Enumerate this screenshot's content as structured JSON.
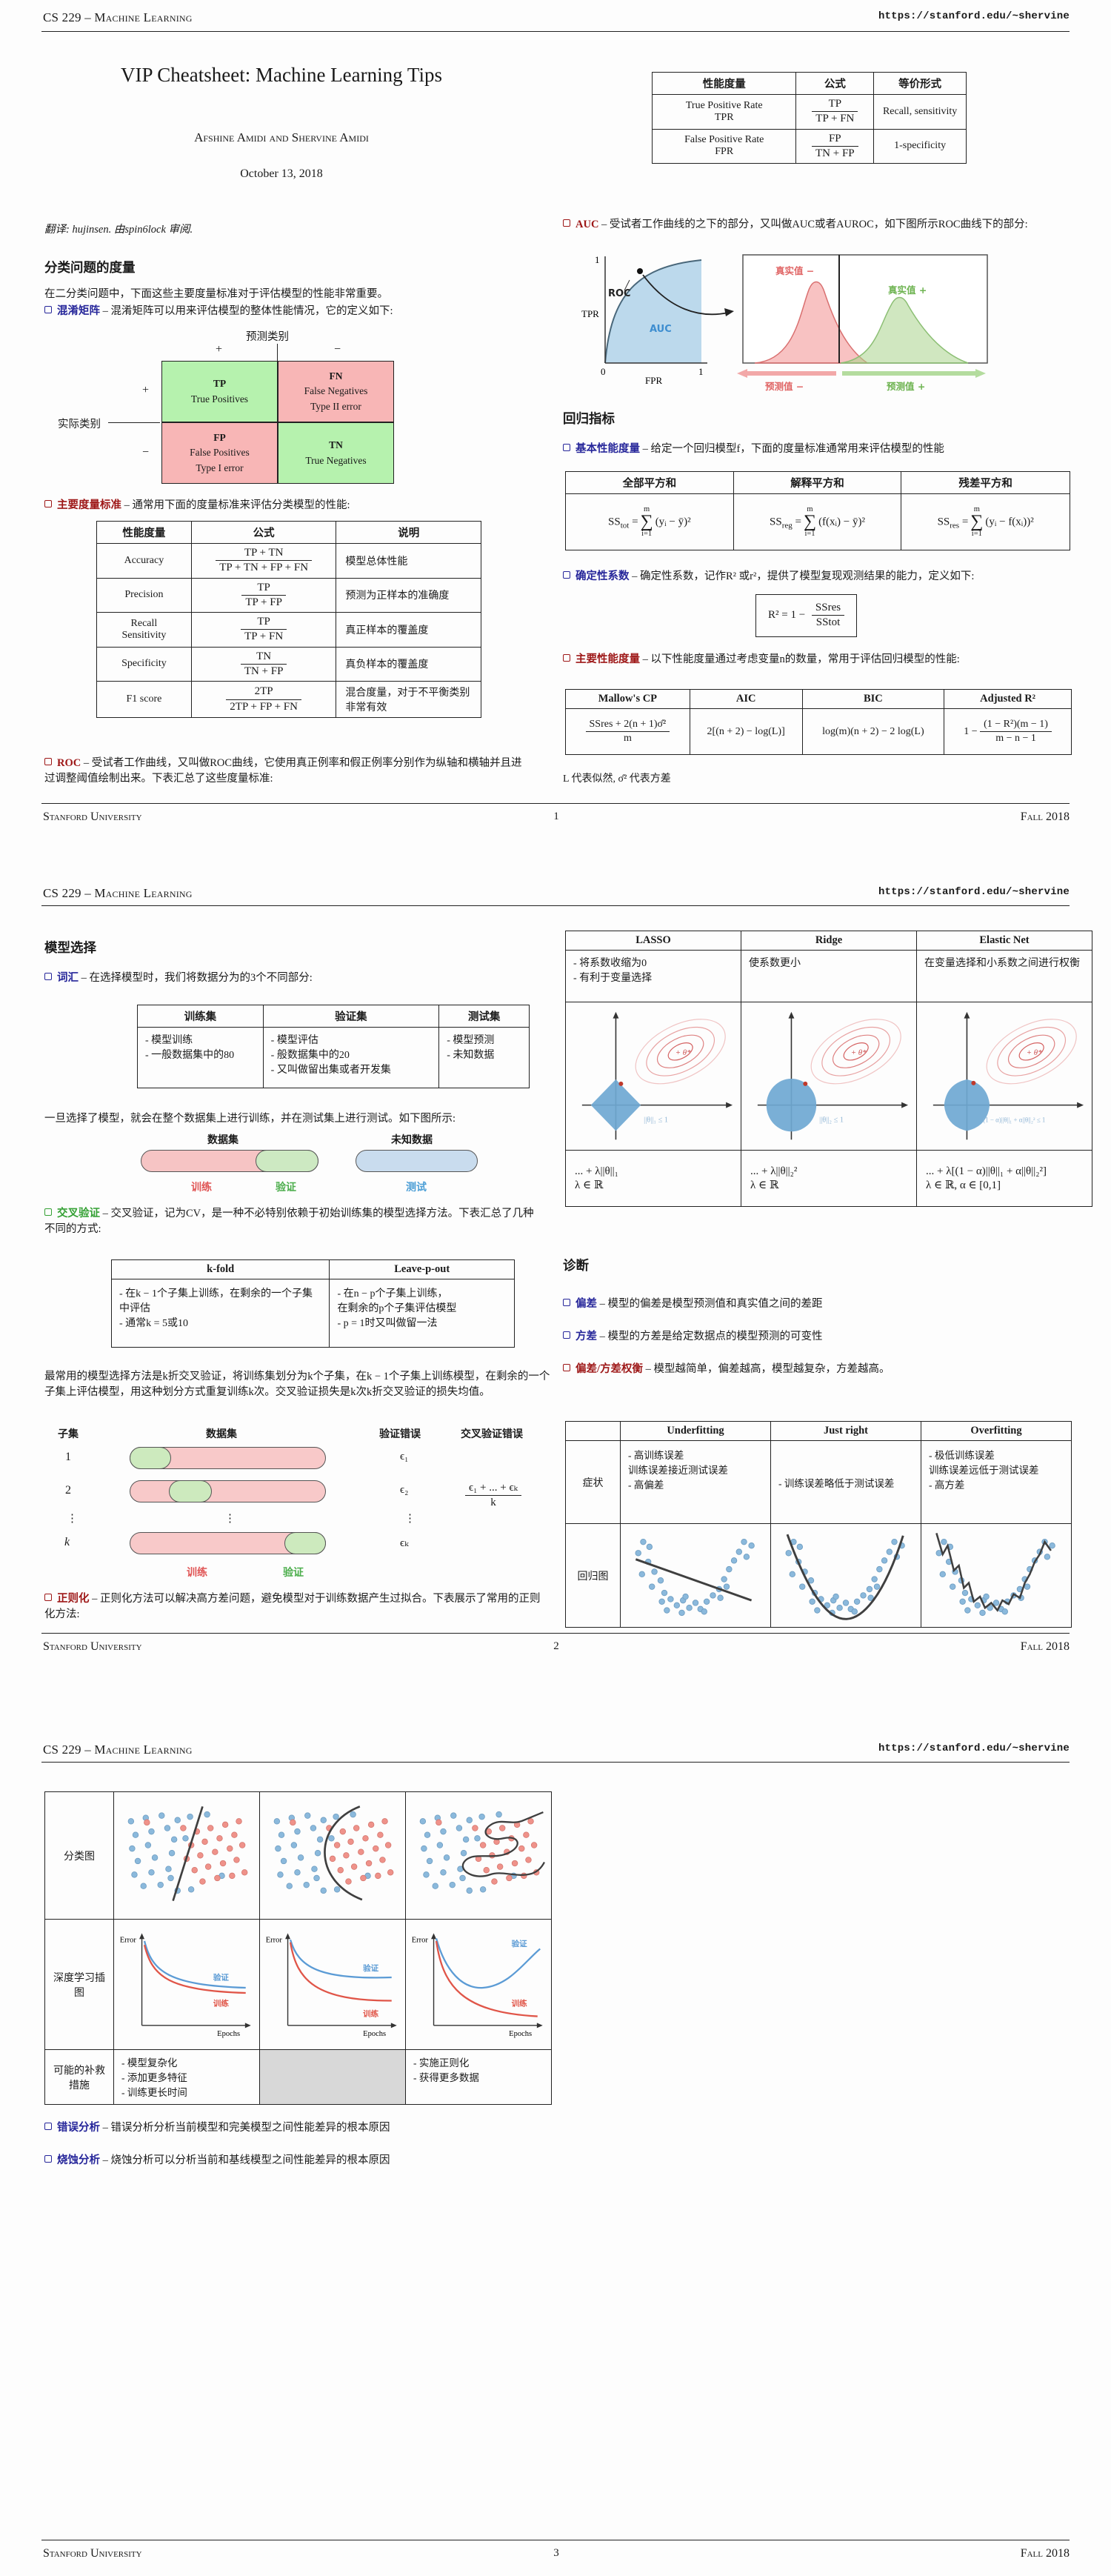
{
  "header": {
    "course": "CS 229 – Machine Learning",
    "url": "https://stanford.edu/~shervine"
  },
  "footer": {
    "left": "Stanford University",
    "right": "Fall 2018",
    "p1": "1",
    "p2": "2",
    "p3": "3"
  },
  "symbols": {
    "eq": "=",
    "sum": "∑",
    "plus": "+",
    "minus": "−",
    "vdots": "⋮"
  },
  "p1": {
    "title": "VIP Cheatsheet: Machine Learning Tips",
    "authors": "Afshine Amidi and Shervine Amidi",
    "date": "October 13, 2018",
    "translation": "翻译: hujinsen. 由spin6lock 审阅.",
    "cls": {
      "heading": "分类问题的度量",
      "intro": "在二分类问题中，下面这些主要度量标准对于评估模型的性能非常重要。",
      "confusion_label": "混淆矩阵",
      "confusion_desc": "– 混淆矩阵可以用来评估模型的整体性能情况，它的定义如下:",
      "matrix": {
        "predicted": "预测类别",
        "actual": "实际类别",
        "tp_abbr": "TP",
        "tp_name": "True Positives",
        "fn_abbr": "FN",
        "fn_name": "False Negatives",
        "fn_err": "Type II error",
        "fp_abbr": "FP",
        "fp_name": "False Positives",
        "fp_err": "Type I error",
        "tn_abbr": "TN",
        "tn_name": "True Negatives"
      },
      "metrics_label": "主要度量标准",
      "metrics_desc": "– 通常用下面的度量标准来评估分类模型的性能:",
      "metrics_headers": [
        "性能度量",
        "公式",
        "说明"
      ],
      "metrics_rows": [
        {
          "name": "Accuracy",
          "num": "TP + TN",
          "den": "TP + TN + FP + FN",
          "note": "模型总体性能"
        },
        {
          "name": "Precision",
          "num": "TP",
          "den": "TP + FP",
          "note": "预测为正样本的准确度"
        },
        {
          "name": "Recall\nSensitivity",
          "num": "TP",
          "den": "TP + FN",
          "note": "真正样本的覆盖度"
        },
        {
          "name": "Specificity",
          "num": "TN",
          "den": "TN + FP",
          "note": "真负样本的覆盖度"
        },
        {
          "name": "F1 score",
          "num": "2TP",
          "den": "2TP + FP + FN",
          "note": "混合度量，对于不平衡类别非常有效"
        }
      ],
      "roc_label": "ROC",
      "roc_desc": "– 受试者工作曲线，又叫做ROC曲线，它使用真正例率和假正例率分别作为纵轴和横轴并且进过调整阈值绘制出来。下表汇总了这些度量标准:"
    },
    "rates": {
      "headers": [
        "性能度量",
        "公式",
        "等价形式"
      ],
      "rows": [
        {
          "name": "True Positive Rate",
          "abbr": "TPR",
          "num": "TP",
          "den": "TP + FN",
          "equiv": "Recall, sensitivity"
        },
        {
          "name": "False Positive Rate",
          "abbr": "FPR",
          "num": "FP",
          "den": "TN + FP",
          "equiv": "1-specificity"
        }
      ]
    },
    "auc": {
      "label": "AUC",
      "desc": "– 受试者工作曲线的之下的部分，又叫做AUC或者AUROC，如下图所示ROC曲线下的部分:",
      "roc_plot": {
        "one_y": "1",
        "zero": "0",
        "one_x": "1",
        "ylabel": "TPR",
        "xlabel": "FPR",
        "curve": "ROC",
        "area": "AUC"
      },
      "dist": {
        "neg": "真实值 −",
        "pos": "真实值 +",
        "pred_neg": "预测值 −",
        "pred_pos": "预测值 +"
      }
    },
    "reg": {
      "heading": "回归指标",
      "basic_label": "基本性能度量",
      "basic_desc": "– 给定一个回归模型f，下面的度量标准通常用来评估模型的性能",
      "ss_headers": [
        "全部平方和",
        "解释平方和",
        "残差平方和"
      ],
      "ss_rows": [
        {
          "base": "SS",
          "sub": "tot",
          "top": "m",
          "bot": "i=1",
          "expr": "(yᵢ − ȳ)²"
        },
        {
          "base": "SS",
          "sub": "reg",
          "top": "m",
          "bot": "i=1",
          "expr": "(f(xᵢ) − ȳ)²"
        },
        {
          "base": "SS",
          "sub": "res",
          "top": "m",
          "bot": "i=1",
          "expr": "(yᵢ − f(xᵢ))²"
        }
      ],
      "r2_label": "确定性系数",
      "r2_desc": "– 确定性系数，记作R² 或r²，提供了模型复现观测结果的能力，定义如下:",
      "r2_pre": "R² = 1 −",
      "r2_num": "SSres",
      "r2_den": "SStot",
      "main_label": "主要性能度量",
      "main_desc": "– 以下性能度量通过考虑变量n的数量，常用于评估回归模型的性能:",
      "main_headers": [
        "Mallow's CP",
        "AIC",
        "BIC",
        "Adjusted R²"
      ],
      "cp_num": "SSres + 2(n + 1)σ̂²",
      "cp_den": "m",
      "aic": "2[(n + 2) − log(L)]",
      "bic": "log(m)(n + 2) − 2 log(L)",
      "adj_pre": "1 −",
      "adj_num": "(1 − R²)(m − 1)",
      "adj_den": "m − n − 1",
      "note": "L 代表似然, σ̂² 代表方差"
    }
  },
  "p2": {
    "model": {
      "heading": "模型选择",
      "vocab_label": "词汇",
      "vocab_desc": "– 在选择模型时，我们将数据分为的3个不同部分:",
      "vocab_headers": [
        "训练集",
        "验证集",
        "测试集"
      ],
      "vocab_cells": [
        "- 模型训练\n- 一般数据集中的80",
        "- 模型评估\n- 般数据集中的20\n- 又叫做留出集或者开发集",
        "- 模型预测\n- 未知数据"
      ],
      "once": "一旦选择了模型，就会在整个数据集上进行训练，并在测试集上进行测试。如下图所示:",
      "split": {
        "dataset": "数据集",
        "unseen": "未知数据",
        "train": "训练",
        "valid": "验证",
        "test": "测试"
      },
      "cv_label": "交叉验证",
      "cv_desc": "– 交叉验证，记为CV，是一种不必特别依赖于初始训练集的模型选择方法。下表汇总了几种不同的方式:",
      "cv_headers": [
        "k-fold",
        "Leave-p-out"
      ],
      "cv_cells": [
        "- 在k − 1个子集上训练，在剩余的一个子集中评估\n- 通常k = 5或10",
        "- 在n − p个子集上训练，\n在剩余的p个子集评估模型\n- p = 1时又叫做留一法"
      ],
      "cv_para": "最常用的模型选择方法是k折交叉验证，将训练集划分为k个子集，在k − 1个子集上训练模型，在剩余的一个子集上评估模型，用这种划分方式重复训练k次。交叉验证损失是k次k折交叉验证的损失均值。",
      "kfold": {
        "subset": "子集",
        "dataset": "数据集",
        "val_err": "验证错误",
        "cv_err": "交叉验证错误",
        "r1": "1",
        "r2": "2",
        "rdots": "⋮",
        "rk": "k",
        "e1": "ϵ₁",
        "e2": "ϵ₂",
        "edots": "⋮",
        "ek": "ϵₖ",
        "frac_num": "ϵ₁ + ... + ϵₖ",
        "frac_den": "k",
        "train": "训练",
        "valid": "验证"
      },
      "regu_label": "正则化",
      "regu_desc": "– 正则化方法可以解决高方差问题，避免模型对于训练数据产生过拟合。下表展示了常用的正则化方法:"
    },
    "lasso": {
      "headers": [
        "LASSO",
        "Ridge",
        "Elastic Net"
      ],
      "descs": [
        "- 将系数收缩为0\n- 有利于变量选择",
        "使系数更小",
        "在变量选择和小系数之间进行权衡"
      ],
      "theta": "+ θ*",
      "constraints": [
        "||θ||₁ ≤ 1",
        "||θ||₂ ≤ 1",
        "(1 − α)||θ||₁ + α||θ||₂² ≤ 1"
      ],
      "formulas": [
        "... + λ||θ||₁\nλ ∈ ℝ",
        "... + λ||θ||₂²\nλ ∈ ℝ",
        "... + λ[(1 − α)||θ||₁ + α||θ||₂²]\nλ ∈ ℝ,   α ∈ [0,1]"
      ]
    },
    "diag": {
      "heading": "诊断",
      "bias_label": "偏差",
      "bias_desc": "– 模型的偏差是模型预测值和真实值之间的差距",
      "var_label": "方差",
      "var_desc": "– 模型的方差是给定数据点的模型预测的可变性",
      "tradeoff_label": "偏差/方差权衡",
      "tradeoff_desc": "– 模型越简单，偏差越高，模型越复杂，方差越高。"
    },
    "fit": {
      "headers": [
        "Underfitting",
        "Just right",
        "Overfitting"
      ],
      "symptoms_label": "症状",
      "symptoms": [
        "- 高训练误差\n训练误差接近测试误差\n- 高偏差",
        "- 训练误差略低于测试误差",
        "- 极低训练误差\n训练误差远低于测试误差\n- 高方差"
      ],
      "regression_label": "回归图"
    }
  },
  "p3": {
    "cls_label": "分类图",
    "dl_label": "深度学习插图",
    "remedy_label": "可能的补救措施",
    "remedies": [
      "- 模型复杂化\n- 添加更多特征\n- 训练更长时间",
      "",
      "- 实施正则化\n- 获得更多数据"
    ],
    "err_plot": {
      "error": "Error",
      "epochs": "Epochs",
      "valid": "验证",
      "train": "训练"
    },
    "error_label": "错误分析",
    "error_desc": "– 错误分析分析当前模型和完美模型之间性能差异的根本原因",
    "ablative_label": "烧蚀分析",
    "ablative_desc": "– 烧蚀分析可以分析当前和基线模型之间性能差异的根本原因"
  }
}
